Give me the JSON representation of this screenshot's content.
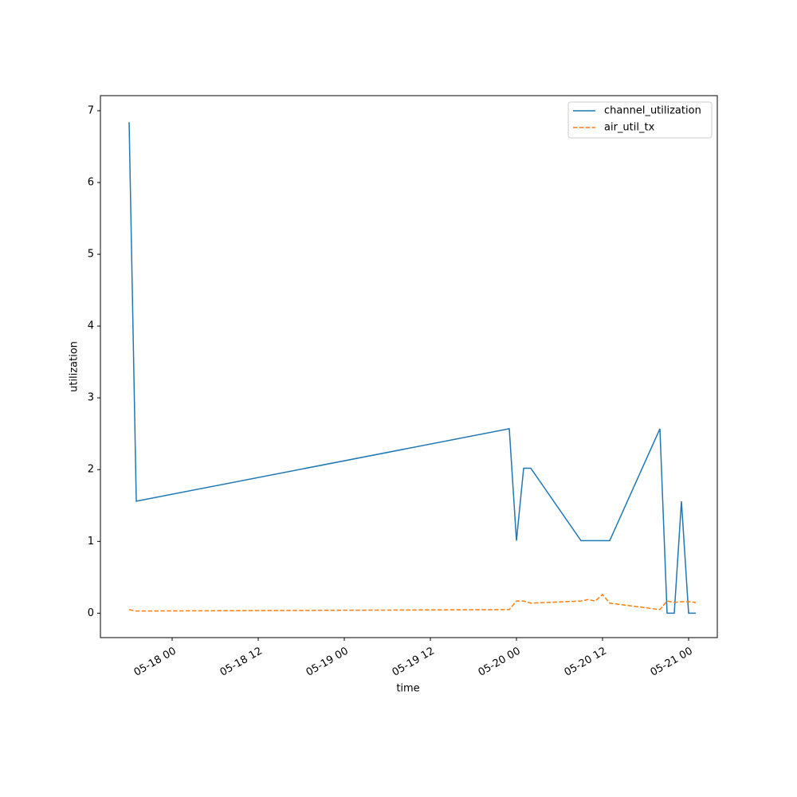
{
  "chart_data": {
    "type": "line",
    "x_label": "time",
    "y_label": "utilization",
    "x": [
      "05-17 18",
      "05-17 19",
      "05-19 23",
      "05-20 00",
      "05-20 01",
      "05-20 02",
      "05-20 09",
      "05-20 10",
      "05-20 11",
      "05-20 12",
      "05-20 13",
      "05-20 20",
      "05-20 21",
      "05-20 22",
      "05-20 23",
      "05-21 00",
      "05-21 01"
    ],
    "series": [
      {
        "name": "channel_utilization",
        "color": "#1f77b4",
        "dash": "solid",
        "values": [
          6.84,
          1.56,
          2.57,
          1.01,
          2.02,
          2.02,
          1.01,
          1.01,
          1.01,
          1.01,
          1.01,
          2.57,
          0,
          0,
          1.56,
          0,
          0
        ]
      },
      {
        "name": "air_util_tx",
        "color": "#ff7f0e",
        "dash": "dashed",
        "values": [
          0.05,
          0.03,
          0.05,
          0.17,
          0.17,
          0.14,
          0.17,
          0.19,
          0.17,
          0.26,
          0.14,
          0.05,
          0.17,
          0.15,
          0.16,
          0.16,
          0.15
        ]
      }
    ],
    "xlim": [
      "05-17 14",
      "05-21 04"
    ],
    "xticks": [
      "05-18 00",
      "05-18 12",
      "05-19 00",
      "05-19 12",
      "05-20 00",
      "05-20 12",
      "05-21 00"
    ],
    "ylim": [
      -0.34,
      7.21
    ],
    "yticks": [
      0,
      1,
      2,
      3,
      4,
      5,
      6,
      7
    ],
    "legend": "upper right"
  }
}
